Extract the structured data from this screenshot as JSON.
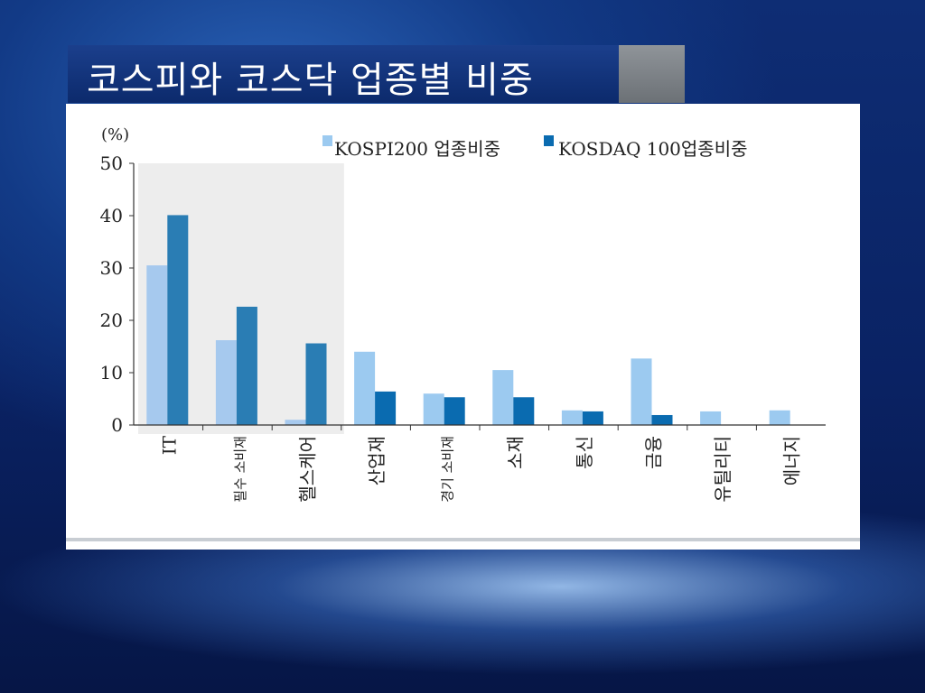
{
  "slide": {
    "title": "코스피와 코스닥 업종별 비중"
  },
  "colors": {
    "kospi": "#9ccaf0",
    "kospi_highlight": "#a6c9ee",
    "kosdaq": "#0a6bb0",
    "kosdaq_highlight": "#2a7db4",
    "highlight_bg": "#ededed"
  },
  "chart_data": {
    "type": "bar",
    "unit_label": "(%)",
    "ylim": [
      0,
      50
    ],
    "y_ticks": [
      "0",
      "10",
      "20",
      "30",
      "40",
      "50"
    ],
    "categories": [
      "IT",
      "필수 소비재",
      "헬스케어",
      "산업재",
      "경기 소비재",
      "소재",
      "통신",
      "금융",
      "유틸리티",
      "에너지"
    ],
    "series": [
      {
        "name": "KOSPI200 업종비중",
        "values": [
          30.5,
          16.2,
          1.0,
          14.0,
          6.0,
          10.5,
          2.8,
          12.7,
          2.6,
          2.8
        ]
      },
      {
        "name": "KOSDAQ 100업종비중",
        "values": [
          40.1,
          22.6,
          15.6,
          6.4,
          5.3,
          5.3,
          2.6,
          1.9,
          null,
          null
        ]
      }
    ],
    "highlighted_categories": [
      "IT",
      "필수 소비재",
      "헬스케어"
    ],
    "legend_position": "top"
  }
}
